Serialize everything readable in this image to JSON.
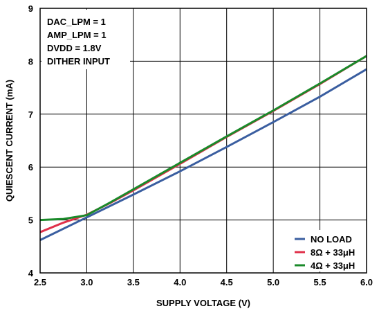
{
  "chart_data": {
    "type": "line",
    "xlabel": "SUPPLY VOLTAGE (V)",
    "ylabel": "QUIESCENT CURRENT (mA)",
    "xlim": [
      2.5,
      6.0
    ],
    "ylim": [
      4,
      9
    ],
    "x_ticks": [
      "2.5",
      "3.0",
      "3.5",
      "4.0",
      "4.5",
      "5.0",
      "5.5",
      "6.0"
    ],
    "y_ticks": [
      "4",
      "5",
      "6",
      "7",
      "8",
      "9"
    ],
    "grid": true,
    "legend_position": "bottom-right",
    "annotations": [
      "DAC_LPM = 1",
      "AMP_LPM = 1",
      "DVDD = 1.8V",
      "DITHER INPUT"
    ],
    "series": [
      {
        "name": "NO LOAD",
        "color": "#3a5ea0",
        "x": [
          2.5,
          3.0,
          3.5,
          4.0,
          4.5,
          5.0,
          5.5,
          6.0
        ],
        "y": [
          4.62,
          5.05,
          5.48,
          5.92,
          6.38,
          6.85,
          7.33,
          7.85
        ]
      },
      {
        "name": "8Ω + 33μH",
        "color": "#e0304a",
        "x": [
          2.5,
          2.75,
          3.0,
          3.25,
          3.5,
          4.0,
          4.5,
          5.0,
          5.5,
          6.0
        ],
        "y": [
          4.77,
          4.95,
          5.1,
          5.32,
          5.56,
          6.06,
          6.57,
          7.06,
          7.57,
          8.1
        ]
      },
      {
        "name": "4Ω + 33μH",
        "color": "#1a8a2a",
        "x": [
          2.5,
          2.75,
          3.0,
          3.25,
          3.5,
          4.0,
          4.5,
          5.0,
          5.5,
          6.0
        ],
        "y": [
          5.0,
          5.02,
          5.09,
          5.33,
          5.58,
          6.08,
          6.58,
          7.07,
          7.58,
          8.1
        ]
      }
    ]
  }
}
